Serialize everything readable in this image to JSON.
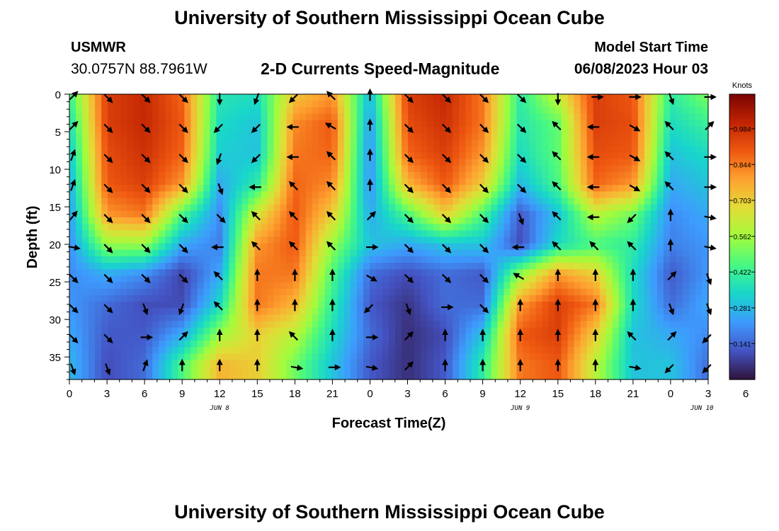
{
  "page": {
    "title": "University of Southern Mississippi Ocean Cube",
    "footer_title": "University of Southern Mississippi Ocean Cube",
    "station": "USMWR",
    "coordinates": "30.0757N  88.7961W",
    "subtitle": "2-D Currents Speed-Magnitude",
    "model_start_label": "Model Start Time",
    "model_start_value": "06/08/2023 Hour 03"
  },
  "chart_data": {
    "type": "heatmap",
    "title": "2-D Currents Speed-Magnitude",
    "xlabel": "Forecast Time(Z)",
    "ylabel": "Depth (ft)",
    "x_ticks": [
      "0",
      "3",
      "6",
      "9",
      "12",
      "15",
      "18",
      "21",
      "0",
      "3",
      "6",
      "9",
      "12",
      "15",
      "18",
      "21",
      "0",
      "3",
      "6"
    ],
    "x_range_hours": [
      0,
      51
    ],
    "y_ticks": [
      0,
      5,
      10,
      15,
      20,
      25,
      30,
      35
    ],
    "ylim": [
      0,
      38
    ],
    "date_labels": [
      {
        "text": "JUN 8",
        "hour": 12
      },
      {
        "text": "JUN 9",
        "hour": 36
      },
      {
        "text": "JUN 10",
        "hour": 50.5
      }
    ],
    "colorbar": {
      "label": "Knots",
      "ticks": [
        "0.984",
        "0.844",
        "0.703",
        "0.562",
        "0.422",
        "0.281",
        "0.141"
      ],
      "vmin": 0,
      "vmax": 1.12,
      "colors": [
        "#30123b",
        "#4454c4",
        "#3e9bfe",
        "#18d6cb",
        "#46f884",
        "#a2fc3c",
        "#e1dd37",
        "#fea331",
        "#ef5911",
        "#c22403",
        "#7a0403"
      ]
    },
    "speed_grid": {
      "hours": [
        0,
        3,
        6,
        9,
        12,
        15,
        18,
        21,
        24,
        27,
        30,
        33,
        36,
        39,
        42,
        45,
        48,
        51
      ],
      "depths": [
        0,
        4,
        8,
        12,
        16,
        20,
        24,
        28,
        32,
        36
      ],
      "values": [
        [
          0.42,
          0.95,
          1.0,
          0.88,
          0.38,
          0.36,
          0.72,
          0.8,
          0.28,
          0.95,
          1.0,
          0.85,
          0.4,
          0.62,
          0.95,
          0.9,
          0.4,
          0.52
        ],
        [
          0.35,
          0.95,
          1.0,
          0.9,
          0.35,
          0.3,
          0.82,
          0.9,
          0.22,
          0.92,
          0.98,
          0.85,
          0.38,
          0.48,
          0.95,
          0.92,
          0.35,
          0.42
        ],
        [
          0.3,
          0.92,
          0.98,
          0.88,
          0.32,
          0.3,
          0.85,
          0.88,
          0.2,
          0.88,
          0.95,
          0.8,
          0.35,
          0.48,
          0.92,
          0.9,
          0.3,
          0.35
        ],
        [
          0.25,
          0.9,
          0.95,
          0.8,
          0.25,
          0.4,
          0.88,
          0.82,
          0.2,
          0.75,
          0.9,
          0.7,
          0.28,
          0.45,
          0.88,
          0.8,
          0.25,
          0.3
        ],
        [
          0.22,
          0.8,
          0.85,
          0.45,
          0.2,
          0.65,
          0.9,
          0.7,
          0.25,
          0.45,
          0.7,
          0.45,
          0.12,
          0.3,
          0.6,
          0.5,
          0.2,
          0.25
        ],
        [
          0.2,
          0.55,
          0.55,
          0.25,
          0.18,
          0.8,
          0.9,
          0.55,
          0.3,
          0.25,
          0.3,
          0.3,
          0.1,
          0.35,
          0.45,
          0.4,
          0.18,
          0.22
        ],
        [
          0.2,
          0.25,
          0.2,
          0.08,
          0.25,
          0.85,
          0.85,
          0.45,
          0.15,
          0.1,
          0.15,
          0.12,
          0.55,
          0.8,
          0.7,
          0.35,
          0.12,
          0.22
        ],
        [
          0.22,
          0.15,
          0.1,
          0.1,
          0.35,
          0.85,
          0.75,
          0.4,
          0.12,
          0.06,
          0.15,
          0.15,
          0.8,
          0.95,
          0.85,
          0.35,
          0.15,
          0.25
        ],
        [
          0.25,
          0.12,
          0.12,
          0.25,
          0.55,
          0.7,
          0.6,
          0.35,
          0.15,
          0.05,
          0.1,
          0.3,
          0.9,
          0.95,
          0.7,
          0.3,
          0.25,
          0.2
        ],
        [
          0.28,
          0.1,
          0.15,
          0.45,
          0.75,
          0.7,
          0.5,
          0.3,
          0.12,
          0.05,
          0.12,
          0.4,
          0.85,
          0.9,
          0.6,
          0.3,
          0.3,
          0.15
        ]
      ]
    },
    "vectors": {
      "hours": [
        0,
        3,
        6,
        9,
        12,
        15,
        18,
        21,
        24,
        27,
        30,
        33,
        36,
        39,
        42,
        45,
        48,
        51
      ],
      "depths": [
        0,
        4,
        8,
        12,
        16,
        20,
        24,
        28,
        32,
        36
      ],
      "directions_deg": [
        [
          45,
          135,
          135,
          135,
          180,
          200,
          225,
          315,
          0,
          135,
          135,
          135,
          135,
          180,
          90,
          90,
          160,
          90
        ],
        [
          45,
          135,
          135,
          135,
          225,
          225,
          270,
          300,
          0,
          135,
          135,
          135,
          135,
          315,
          270,
          120,
          315,
          45
        ],
        [
          20,
          135,
          135,
          135,
          200,
          225,
          270,
          315,
          0,
          135,
          135,
          135,
          135,
          315,
          270,
          120,
          315,
          90
        ],
        [
          20,
          135,
          135,
          135,
          160,
          270,
          315,
          315,
          0,
          135,
          135,
          135,
          135,
          315,
          270,
          120,
          315,
          90
        ],
        [
          40,
          135,
          135,
          135,
          135,
          315,
          315,
          315,
          45,
          135,
          135,
          135,
          160,
          315,
          270,
          225,
          0,
          100
        ],
        [
          100,
          135,
          135,
          135,
          270,
          315,
          315,
          315,
          90,
          135,
          135,
          135,
          270,
          315,
          315,
          315,
          0,
          100
        ],
        [
          135,
          135,
          135,
          135,
          315,
          0,
          0,
          0,
          120,
          135,
          135,
          135,
          300,
          0,
          0,
          0,
          45,
          160
        ],
        [
          135,
          135,
          160,
          200,
          315,
          0,
          0,
          0,
          225,
          160,
          90,
          135,
          0,
          0,
          0,
          0,
          160,
          160
        ],
        [
          135,
          135,
          90,
          45,
          0,
          0,
          315,
          0,
          90,
          45,
          0,
          0,
          0,
          0,
          0,
          315,
          45,
          225
        ],
        [
          160,
          160,
          20,
          0,
          0,
          0,
          100,
          90,
          100,
          45,
          0,
          0,
          0,
          0,
          0,
          100,
          225,
          225
        ]
      ]
    }
  }
}
